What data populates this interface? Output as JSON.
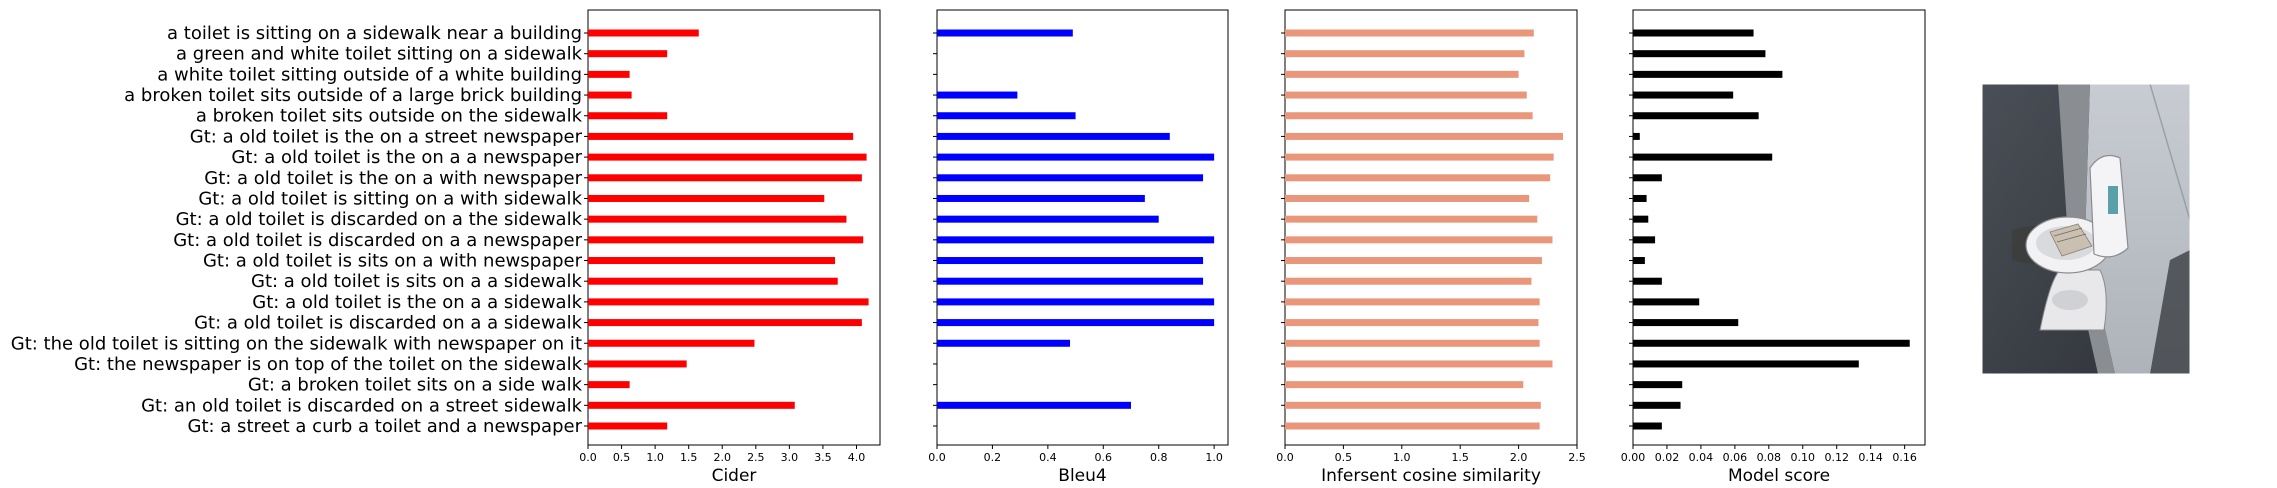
{
  "chart_data": {
    "type": "bar",
    "orientation": "horizontal",
    "categories": [
      "a toilet is sitting on a sidewalk near a building",
      "a green and white toilet sitting on a sidewalk",
      "a white toilet sitting outside of a white building",
      "a broken toilet sits outside of a large brick building",
      "a broken toilet sits outside on the sidewalk",
      "Gt: a old toilet is the on a street newspaper",
      "Gt: a old toilet is the on a a newspaper",
      "Gt: a old toilet is the on a with newspaper",
      "Gt: a old toilet is sitting on a with sidewalk",
      "Gt: a old toilet is discarded on a the sidewalk",
      "Gt: a old toilet is discarded on a a newspaper",
      "Gt: a old toilet is sits on a with newspaper",
      "Gt: a old toilet is sits on a a sidewalk",
      "Gt: a old toilet is the on a a sidewalk",
      "Gt: a old toilet is discarded on a a sidewalk",
      "Gt: the old toilet is sitting on the sidewalk with newspaper on it",
      "Gt: the newspaper is on top of the toilet on the sidewalk",
      "Gt: a broken toilet sits on a side walk",
      "Gt: an old toilet is discarded on a street sidewalk",
      "Gt: a street a curb a toilet and a newspaper"
    ],
    "panels": [
      {
        "xlabel": "Cider",
        "color": "#ff0000",
        "xlim": [
          0,
          4.35
        ],
        "ticks": [
          0,
          0.5,
          1.0,
          1.5,
          2.0,
          2.5,
          3.0,
          3.5,
          4.0
        ],
        "tick_labels": [
          "0.0",
          "0.5",
          "1.0",
          "1.5",
          "2.0",
          "2.5",
          "3.0",
          "3.5",
          "4.0"
        ],
        "values": [
          1.65,
          1.18,
          0.62,
          0.65,
          1.18,
          3.95,
          4.15,
          4.08,
          3.52,
          3.85,
          4.1,
          3.68,
          3.72,
          4.18,
          4.08,
          2.48,
          1.47,
          0.62,
          3.08,
          1.18
        ]
      },
      {
        "xlabel": "Bleu4",
        "color": "#0000ff",
        "xlim": [
          0,
          1.05
        ],
        "ticks": [
          0,
          0.2,
          0.4,
          0.6,
          0.8,
          1.0
        ],
        "tick_labels": [
          "0.0",
          "0.2",
          "0.4",
          "0.6",
          "0.8",
          "1.0"
        ],
        "values": [
          0.49,
          0,
          0,
          0.29,
          0.5,
          0.84,
          1.0,
          0.96,
          0.75,
          0.8,
          1.0,
          0.96,
          0.96,
          1.0,
          1.0,
          0.48,
          0,
          0,
          0.7,
          0
        ]
      },
      {
        "xlabel": "Infersent cosine similarity",
        "color": "#e9967a",
        "xlim": [
          0,
          2.5
        ],
        "ticks": [
          0,
          0.5,
          1.0,
          1.5,
          2.0,
          2.5
        ],
        "tick_labels": [
          "0.0",
          "0.5",
          "1.0",
          "1.5",
          "2.0",
          "2.5"
        ],
        "values": [
          2.13,
          2.05,
          2.0,
          2.07,
          2.12,
          2.38,
          2.3,
          2.27,
          2.09,
          2.16,
          2.29,
          2.2,
          2.11,
          2.18,
          2.17,
          2.18,
          2.29,
          2.04,
          2.19,
          2.18
        ]
      },
      {
        "xlabel": "Model score",
        "color": "#000000",
        "xlim": [
          0,
          0.172
        ],
        "ticks": [
          0,
          0.02,
          0.04,
          0.06,
          0.08,
          0.1,
          0.12,
          0.14,
          0.16
        ],
        "tick_labels": [
          "0.00",
          "0.02",
          "0.04",
          "0.06",
          "0.08",
          "0.10",
          "0.12",
          "0.14",
          "0.16"
        ],
        "values": [
          0.071,
          0.078,
          0.088,
          0.059,
          0.074,
          0.004,
          0.082,
          0.017,
          0.008,
          0.009,
          0.013,
          0.007,
          0.017,
          0.039,
          0.062,
          0.163,
          0.133,
          0.029,
          0.028,
          0.017
        ]
      }
    ]
  },
  "image_panel": {
    "icon": "photo-toilet-on-sidewalk"
  }
}
